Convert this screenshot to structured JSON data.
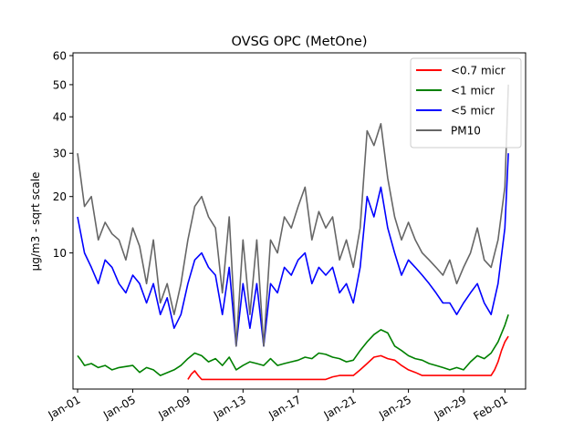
{
  "chart_data": {
    "type": "line",
    "title": "OVSG OPC (MetOne)",
    "xlabel": "",
    "ylabel": "µg/m3 - sqrt scale",
    "y_scale": "sqrt",
    "ylim": [
      0,
      61
    ],
    "xlim": [
      "2022-12-31T16:00",
      "2023-02-02T12:00"
    ],
    "grid": false,
    "legend_position": "top-right",
    "y_ticks": [
      10,
      20,
      30,
      40,
      50,
      60
    ],
    "y_tick_labels": [
      "10",
      "20",
      "30",
      "40",
      "50",
      "60"
    ],
    "x_ticks": [
      "2023-01-01",
      "2023-01-05",
      "2023-01-09",
      "2023-01-13",
      "2023-01-17",
      "2023-01-21",
      "2023-01-25",
      "2023-01-29",
      "2023-02-01"
    ],
    "x_tick_labels": [
      "Jan-01",
      "Jan-05",
      "Jan-09",
      "Jan-13",
      "Jan-17",
      "Jan-21",
      "Jan-25",
      "Jan-29",
      "Feb-01"
    ],
    "series": [
      {
        "name": "<0.7 micr",
        "color": "#ff0000",
        "x": [
          "2023-01-09T00:00",
          "2023-01-09T06:00",
          "2023-01-09T12:00",
          "2023-01-09T18:00",
          "2023-01-10T00:00",
          "2023-01-19T00:00",
          "2023-01-19T12:00",
          "2023-01-20T00:00",
          "2023-01-21T00:00",
          "2023-01-21T12:00",
          "2023-01-22T00:00",
          "2023-01-22T12:00",
          "2023-01-23T00:00",
          "2023-01-23T12:00",
          "2023-01-24T00:00",
          "2023-01-24T12:00",
          "2023-01-25T00:00",
          "2023-01-25T12:00",
          "2023-01-26T00:00",
          "2023-01-31T00:00",
          "2023-01-31T06:00",
          "2023-01-31T12:00",
          "2023-01-31T18:00",
          "2023-02-01T00:00",
          "2023-02-01T06:00"
        ],
        "values": [
          0.05,
          0.12,
          0.18,
          0.1,
          0.05,
          0.05,
          0.08,
          0.1,
          0.1,
          0.2,
          0.35,
          0.55,
          0.6,
          0.5,
          0.45,
          0.3,
          0.2,
          0.15,
          0.1,
          0.1,
          0.2,
          0.4,
          0.8,
          1.2,
          1.5
        ]
      },
      {
        "name": "<1 micr",
        "color": "#008000",
        "x": [
          "2023-01-01T00:00",
          "2023-01-01T06:00",
          "2023-01-01T12:00",
          "2023-01-02T00:00",
          "2023-01-02T12:00",
          "2023-01-03T00:00",
          "2023-01-03T12:00",
          "2023-01-04T00:00",
          "2023-01-05T00:00",
          "2023-01-05T12:00",
          "2023-01-06T00:00",
          "2023-01-06T12:00",
          "2023-01-07T00:00",
          "2023-01-08T00:00",
          "2023-01-08T12:00",
          "2023-01-09T00:00",
          "2023-01-09T12:00",
          "2023-01-10T00:00",
          "2023-01-10T12:00",
          "2023-01-11T00:00",
          "2023-01-11T12:00",
          "2023-01-12T00:00",
          "2023-01-12T12:00",
          "2023-01-13T00:00",
          "2023-01-13T12:00",
          "2023-01-14T00:00",
          "2023-01-14T12:00",
          "2023-01-15T00:00",
          "2023-01-15T12:00",
          "2023-01-16T00:00",
          "2023-01-16T12:00",
          "2023-01-17T00:00",
          "2023-01-17T12:00",
          "2023-01-18T00:00",
          "2023-01-18T12:00",
          "2023-01-19T00:00",
          "2023-01-19T12:00",
          "2023-01-20T00:00",
          "2023-01-20T12:00",
          "2023-01-21T00:00",
          "2023-01-21T12:00",
          "2023-01-22T00:00",
          "2023-01-22T12:00",
          "2023-01-23T00:00",
          "2023-01-23T12:00",
          "2023-01-24T00:00",
          "2023-01-24T12:00",
          "2023-01-25T00:00",
          "2023-01-25T12:00",
          "2023-01-26T00:00",
          "2023-01-26T12:00",
          "2023-01-27T00:00",
          "2023-01-27T12:00",
          "2023-01-28T00:00",
          "2023-01-28T12:00",
          "2023-01-29T00:00",
          "2023-01-29T12:00",
          "2023-01-30T00:00",
          "2023-01-30T12:00",
          "2023-01-31T00:00",
          "2023-01-31T12:00",
          "2023-02-01T00:00",
          "2023-02-01T06:00"
        ],
        "values": [
          0.6,
          0.45,
          0.3,
          0.35,
          0.25,
          0.3,
          0.2,
          0.25,
          0.3,
          0.15,
          0.25,
          0.2,
          0.1,
          0.2,
          0.3,
          0.5,
          0.7,
          0.6,
          0.4,
          0.5,
          0.3,
          0.55,
          0.2,
          0.3,
          0.4,
          0.35,
          0.3,
          0.5,
          0.3,
          0.35,
          0.4,
          0.45,
          0.55,
          0.5,
          0.7,
          0.65,
          0.55,
          0.5,
          0.4,
          0.45,
          0.8,
          1.2,
          1.6,
          1.9,
          1.7,
          1.0,
          0.8,
          0.6,
          0.5,
          0.45,
          0.35,
          0.3,
          0.25,
          0.2,
          0.25,
          0.2,
          0.4,
          0.6,
          0.5,
          0.7,
          1.2,
          2.2,
          3.0
        ]
      },
      {
        "name": "<5 micr",
        "color": "#0000ff",
        "x": [
          "2023-01-01T00:00",
          "2023-01-01T12:00",
          "2023-01-02T00:00",
          "2023-01-02T12:00",
          "2023-01-03T00:00",
          "2023-01-03T12:00",
          "2023-01-04T00:00",
          "2023-01-04T12:00",
          "2023-01-05T00:00",
          "2023-01-05T12:00",
          "2023-01-06T00:00",
          "2023-01-06T12:00",
          "2023-01-07T00:00",
          "2023-01-07T12:00",
          "2023-01-08T00:00",
          "2023-01-08T12:00",
          "2023-01-09T00:00",
          "2023-01-09T12:00",
          "2023-01-10T00:00",
          "2023-01-10T12:00",
          "2023-01-11T00:00",
          "2023-01-11T12:00",
          "2023-01-12T00:00",
          "2023-01-12T12:00",
          "2023-01-13T00:00",
          "2023-01-13T12:00",
          "2023-01-14T00:00",
          "2023-01-14T12:00",
          "2023-01-15T00:00",
          "2023-01-15T12:00",
          "2023-01-16T00:00",
          "2023-01-16T12:00",
          "2023-01-17T00:00",
          "2023-01-17T12:00",
          "2023-01-18T00:00",
          "2023-01-18T12:00",
          "2023-01-19T00:00",
          "2023-01-19T12:00",
          "2023-01-20T00:00",
          "2023-01-20T12:00",
          "2023-01-21T00:00",
          "2023-01-21T12:00",
          "2023-01-22T00:00",
          "2023-01-22T12:00",
          "2023-01-23T00:00",
          "2023-01-23T12:00",
          "2023-01-24T00:00",
          "2023-01-24T12:00",
          "2023-01-25T00:00",
          "2023-01-25T12:00",
          "2023-01-26T00:00",
          "2023-01-26T12:00",
          "2023-01-27T00:00",
          "2023-01-27T12:00",
          "2023-01-28T00:00",
          "2023-01-28T12:00",
          "2023-01-29T00:00",
          "2023-01-29T12:00",
          "2023-01-30T00:00",
          "2023-01-30T12:00",
          "2023-01-31T00:00",
          "2023-01-31T12:00",
          "2023-02-01T00:00",
          "2023-02-01T06:00"
        ],
        "values": [
          16,
          10,
          8,
          6,
          9,
          8,
          6,
          5,
          7,
          6,
          4,
          6,
          3,
          4.5,
          2,
          3,
          6,
          9,
          10,
          8,
          7,
          3,
          8,
          1,
          6,
          2,
          6,
          1,
          6,
          5,
          8,
          7,
          9,
          10,
          6,
          8,
          7,
          8,
          5,
          6,
          4,
          8,
          20,
          16,
          22,
          14,
          10,
          7,
          9,
          8,
          7,
          6,
          5,
          4,
          4,
          3,
          4,
          5,
          6,
          4,
          3,
          6,
          14,
          30
        ]
      },
      {
        "name": "PM10",
        "color": "#666666",
        "x": [
          "2023-01-01T00:00",
          "2023-01-01T12:00",
          "2023-01-02T00:00",
          "2023-01-02T12:00",
          "2023-01-03T00:00",
          "2023-01-03T12:00",
          "2023-01-04T00:00",
          "2023-01-04T12:00",
          "2023-01-05T00:00",
          "2023-01-05T12:00",
          "2023-01-06T00:00",
          "2023-01-06T12:00",
          "2023-01-07T00:00",
          "2023-01-07T12:00",
          "2023-01-08T00:00",
          "2023-01-08T12:00",
          "2023-01-09T00:00",
          "2023-01-09T12:00",
          "2023-01-10T00:00",
          "2023-01-10T12:00",
          "2023-01-11T00:00",
          "2023-01-11T12:00",
          "2023-01-12T00:00",
          "2023-01-12T12:00",
          "2023-01-13T00:00",
          "2023-01-13T12:00",
          "2023-01-14T00:00",
          "2023-01-14T12:00",
          "2023-01-15T00:00",
          "2023-01-15T12:00",
          "2023-01-16T00:00",
          "2023-01-16T12:00",
          "2023-01-17T00:00",
          "2023-01-17T12:00",
          "2023-01-18T00:00",
          "2023-01-18T12:00",
          "2023-01-19T00:00",
          "2023-01-19T12:00",
          "2023-01-20T00:00",
          "2023-01-20T12:00",
          "2023-01-21T00:00",
          "2023-01-21T12:00",
          "2023-01-22T00:00",
          "2023-01-22T12:00",
          "2023-01-23T00:00",
          "2023-01-23T12:00",
          "2023-01-24T00:00",
          "2023-01-24T12:00",
          "2023-01-25T00:00",
          "2023-01-25T12:00",
          "2023-01-26T00:00",
          "2023-01-26T12:00",
          "2023-01-27T00:00",
          "2023-01-27T12:00",
          "2023-01-28T00:00",
          "2023-01-28T12:00",
          "2023-01-29T00:00",
          "2023-01-29T12:00",
          "2023-01-30T00:00",
          "2023-01-30T12:00",
          "2023-01-31T00:00",
          "2023-01-31T12:00",
          "2023-02-01T00:00",
          "2023-02-01T06:00"
        ],
        "values": [
          30,
          18,
          20,
          12,
          15,
          13,
          12,
          9,
          14,
          11,
          6,
          12,
          4,
          6,
          3,
          6,
          12,
          18,
          20,
          16,
          14,
          5,
          16,
          1,
          12,
          3,
          12,
          1,
          12,
          10,
          16,
          14,
          18,
          22,
          12,
          17,
          14,
          16,
          9,
          12,
          8,
          14,
          36,
          32,
          38,
          24,
          16,
          12,
          15,
          12,
          10,
          9,
          8,
          7,
          9,
          6,
          8,
          10,
          14,
          9,
          8,
          12,
          22,
          50
        ]
      }
    ]
  }
}
